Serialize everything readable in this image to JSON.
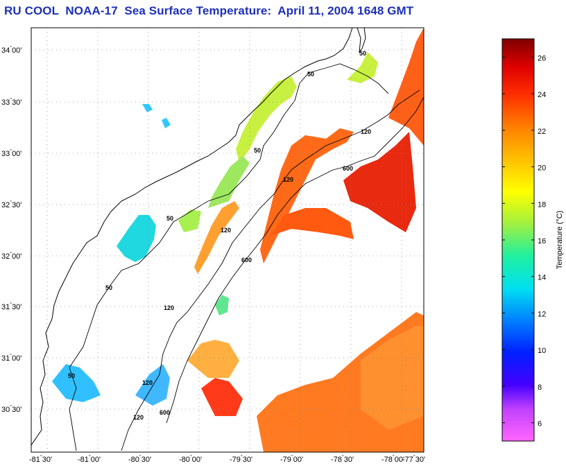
{
  "title": "RU COOL  NOAA-17  Sea Surface Temperature:  April 11, 2004 1648 GMT",
  "y_axis": {
    "ticks": [
      {
        "deg": "34",
        "min": "00'"
      },
      {
        "deg": "33",
        "min": "30'"
      },
      {
        "deg": "33",
        "min": "00'"
      },
      {
        "deg": "32",
        "min": "30'"
      },
      {
        "deg": "32",
        "min": "00'"
      },
      {
        "deg": "31",
        "min": "30'"
      },
      {
        "deg": "31",
        "min": "00'"
      },
      {
        "deg": "30",
        "min": "30'"
      }
    ]
  },
  "x_axis": {
    "ticks": [
      {
        "deg": "-81",
        "min": "30'"
      },
      {
        "deg": "-81",
        "min": "00'"
      },
      {
        "deg": "-80",
        "min": "30'"
      },
      {
        "deg": "-80",
        "min": "00'"
      },
      {
        "deg": "-79",
        "min": "30'"
      },
      {
        "deg": "-79",
        "min": "00'"
      },
      {
        "deg": "-78",
        "min": "30'"
      },
      {
        "deg": "-78",
        "min": "00'"
      },
      {
        "deg": "-77",
        "min": "30'"
      }
    ]
  },
  "colorbar": {
    "label": "Temperature (°C)",
    "range": [
      5,
      27
    ],
    "ticks": [
      "6",
      "8",
      "10",
      "12",
      "14",
      "16",
      "18",
      "20",
      "22",
      "24",
      "26"
    ]
  },
  "bathymetry_labels": [
    "50",
    "50",
    "50",
    "50",
    "50",
    "50",
    "120",
    "120",
    "120",
    "120",
    "120",
    "120",
    "600",
    "600",
    "600"
  ]
}
